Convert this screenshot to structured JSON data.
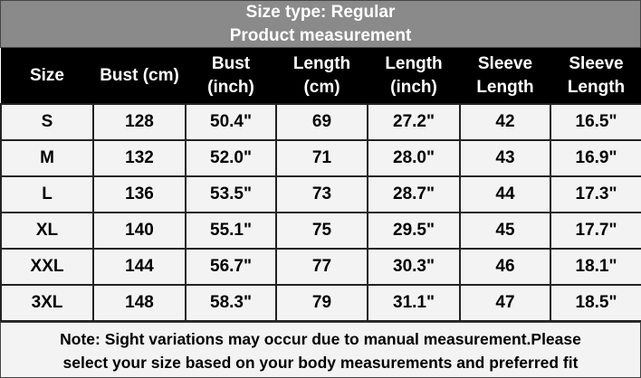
{
  "header": {
    "title": "Size type: Regular",
    "subtitle": "Product measurement"
  },
  "table": {
    "columns": [
      "Size",
      "Bust (cm)",
      "Bust\n(inch)",
      "Length\n(cm)",
      "Length\n(inch)",
      "Sleeve\nLength",
      "Sleeve\nLength"
    ],
    "rows": [
      [
        "S",
        "128",
        "50.4\"",
        "69",
        "27.2\"",
        "42",
        "16.5\""
      ],
      [
        "M",
        "132",
        "52.0\"",
        "71",
        "28.0\"",
        "43",
        "16.9\""
      ],
      [
        "L",
        "136",
        "53.5\"",
        "73",
        "28.7\"",
        "44",
        "17.3\""
      ],
      [
        "XL",
        "140",
        "55.1\"",
        "75",
        "29.5\"",
        "45",
        "17.7\""
      ],
      [
        "XXL",
        "144",
        "56.7\"",
        "77",
        "30.3\"",
        "46",
        "18.1\""
      ],
      [
        "3XL",
        "148",
        "58.3\"",
        "79",
        "31.1\"",
        "47",
        "18.5\""
      ]
    ]
  },
  "note": "Note: Sight variations may occur due to manual measurement.Please\nselect your size based on your body measurements and preferred fit"
}
